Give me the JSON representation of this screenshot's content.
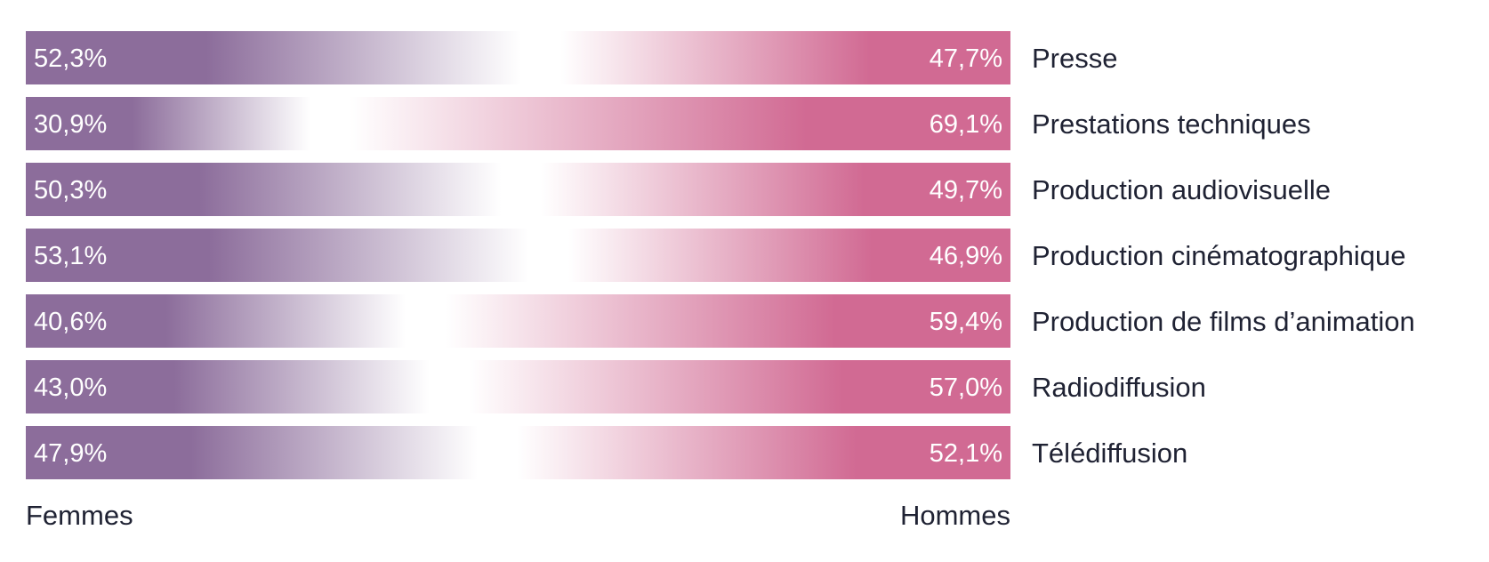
{
  "chart_data": {
    "type": "bar",
    "orientation": "horizontal",
    "stacked": true,
    "normalized_to_percent": true,
    "categories": [
      "Presse",
      "Prestations techniques",
      "Production audiovisuelle",
      "Production cinématographique",
      "Production de films d’animation",
      "Radiodiffusion",
      "Télédiffusion"
    ],
    "series": [
      {
        "name": "Femmes",
        "values": [
          52.3,
          30.9,
          50.3,
          53.1,
          40.6,
          43.0,
          47.9
        ],
        "labels": [
          "52,3%",
          "30,9%",
          "50,3%",
          "53,1%",
          "40,6%",
          "43,0%",
          "47,9%"
        ],
        "color": "#8c6d9b"
      },
      {
        "name": "Hommes",
        "values": [
          47.7,
          69.1,
          49.7,
          46.9,
          59.4,
          57.0,
          52.1
        ],
        "labels": [
          "47,7%",
          "69,1%",
          "49,7%",
          "46,9%",
          "59,4%",
          "57,0%",
          "52,1%"
        ],
        "color": "#d16a93"
      }
    ],
    "xlim": [
      0,
      100
    ],
    "legend_position": "bottom",
    "grid": false
  }
}
